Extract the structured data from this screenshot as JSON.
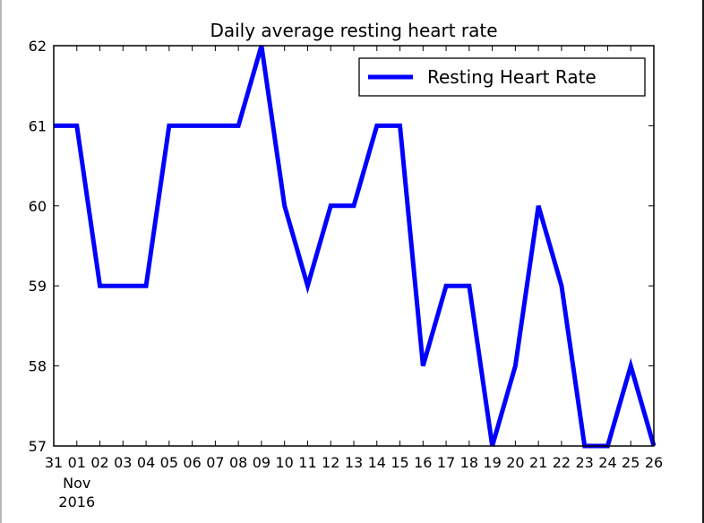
{
  "chart_data": {
    "type": "line",
    "title": "Daily average resting heart rate",
    "xlabel": "",
    "ylabel": "",
    "x": [
      "31",
      "01",
      "02",
      "03",
      "04",
      "05",
      "06",
      "07",
      "08",
      "09",
      "10",
      "11",
      "12",
      "13",
      "14",
      "15",
      "16",
      "17",
      "18",
      "19",
      "20",
      "21",
      "22",
      "23",
      "24",
      "25",
      "26"
    ],
    "x_sublabel_lines": [
      "Nov",
      "2016"
    ],
    "series": [
      {
        "name": "Resting Heart Rate",
        "color": "#0000ff",
        "values": [
          61,
          61,
          59,
          59,
          59,
          61,
          61,
          61,
          61,
          62,
          60,
          59,
          60,
          60,
          61,
          61,
          58,
          59,
          59,
          57,
          58,
          60,
          59,
          57,
          57,
          58,
          57
        ]
      }
    ],
    "ylim": [
      57,
      62
    ],
    "yticks": [
      57,
      58,
      59,
      60,
      61,
      62
    ],
    "grid": false,
    "legend_position": "top-right"
  }
}
